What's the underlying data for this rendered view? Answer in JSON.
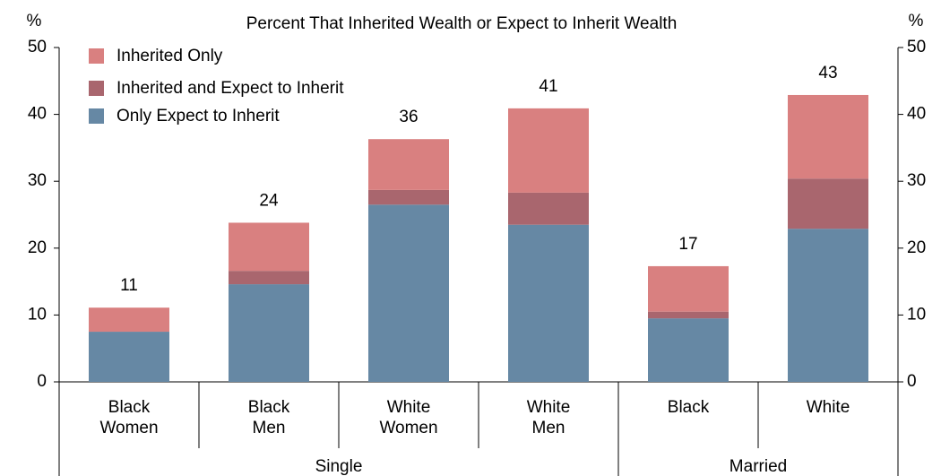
{
  "chart_data": {
    "type": "stacked_bar",
    "title": "Percent That Inherited Wealth or Expect to Inherit Wealth",
    "y_unit": "%",
    "y2_unit": "%",
    "categories": [
      "Black Women",
      "Black Men",
      "White Women",
      "White Men",
      "Black",
      "White"
    ],
    "groups": [
      {
        "name": "Single",
        "count": 4
      },
      {
        "name": "Married",
        "count": 2
      }
    ],
    "series": [
      {
        "name": "Only Expect to Inherit",
        "color": "#6688a4",
        "values": [
          7.5,
          14.6,
          26.5,
          23.5,
          9.5,
          22.9
        ]
      },
      {
        "name": "Inherited and Expect to Inherit",
        "color": "#a9666e",
        "values": [
          0,
          2.0,
          2.2,
          4.8,
          1.0,
          7.5
        ]
      },
      {
        "name": "Inherited Only",
        "color": "#d98080",
        "values": [
          3.6,
          7.2,
          7.6,
          12.6,
          6.8,
          12.5
        ]
      }
    ],
    "totals": [
      11,
      24,
      36,
      41,
      17,
      43
    ],
    "ylim": [
      0,
      50
    ],
    "yticks": [
      0,
      10,
      20,
      30,
      40,
      50
    ],
    "y2lim": [
      0,
      50
    ],
    "y2ticks": [
      0,
      10,
      20,
      30,
      40,
      50
    ]
  }
}
